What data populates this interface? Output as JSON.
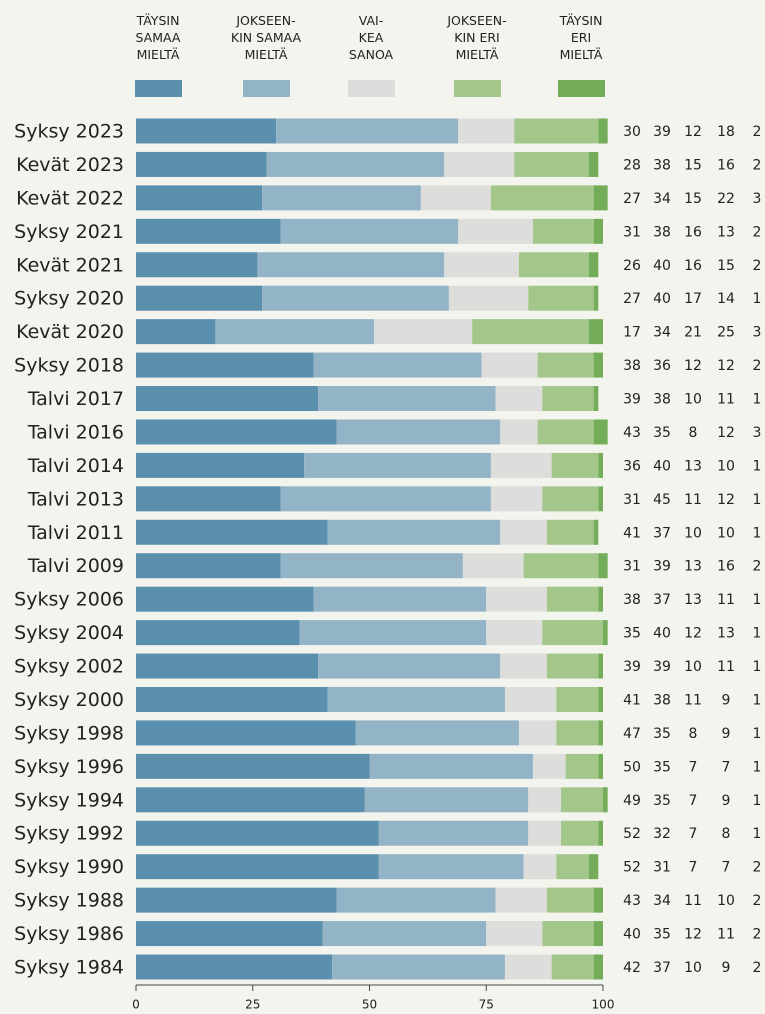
{
  "chart_data": {
    "type": "stacked-bar-horizontal",
    "categories": [
      "Syksy 2023",
      "Kevät 2023",
      "Kevät 2022",
      "Syksy 2021",
      "Kevät 2021",
      "Syksy 2020",
      "Kevät 2020",
      "Syksy 2018",
      "Talvi 2017",
      "Talvi 2016",
      "Talvi 2014",
      "Talvi 2013",
      "Talvi 2011",
      "Talvi 2009",
      "Syksy 2006",
      "Syksy 2004",
      "Syksy 2002",
      "Syksy 2000",
      "Syksy 1998",
      "Syksy 1996",
      "Syksy 1994",
      "Syksy 1992",
      "Syksy 1990",
      "Syksy 1988",
      "Syksy 1986",
      "Syksy 1984"
    ],
    "series": [
      {
        "name": "TÄYSIN\nSAMAA\nMIELTÄ",
        "color": "#5b8fae",
        "values": [
          30,
          28,
          27,
          31,
          26,
          27,
          17,
          38,
          39,
          43,
          36,
          31,
          41,
          31,
          38,
          35,
          39,
          41,
          47,
          50,
          49,
          52,
          52,
          43,
          40,
          42
        ]
      },
      {
        "name": "JOKSEEN-\nKIN SAMAA\nMIELTÄ",
        "color": "#93b3c6",
        "values": [
          39,
          38,
          34,
          38,
          40,
          40,
          34,
          36,
          38,
          35,
          40,
          45,
          37,
          39,
          37,
          40,
          39,
          38,
          35,
          35,
          35,
          32,
          31,
          34,
          35,
          37
        ]
      },
      {
        "name": "VAI-\nKEA\nSANOA",
        "color": "#dddddb",
        "values": [
          12,
          15,
          15,
          16,
          16,
          17,
          21,
          12,
          10,
          8,
          13,
          11,
          10,
          13,
          13,
          12,
          10,
          11,
          8,
          7,
          7,
          7,
          7,
          11,
          12,
          10
        ]
      },
      {
        "name": "JOKSEEN-\nKIN ERI\nMIELTÄ",
        "color": "#a3c68b",
        "values": [
          18,
          16,
          22,
          13,
          15,
          14,
          25,
          12,
          11,
          12,
          10,
          12,
          10,
          16,
          11,
          13,
          11,
          9,
          9,
          7,
          9,
          8,
          7,
          10,
          11,
          9
        ]
      },
      {
        "name": "TÄYSIN\nERI\nMIELTÄ",
        "color": "#74ad59",
        "values": [
          2,
          2,
          3,
          2,
          2,
          1,
          3,
          2,
          1,
          3,
          1,
          1,
          1,
          2,
          1,
          1,
          1,
          1,
          1,
          1,
          1,
          1,
          2,
          2,
          2,
          2
        ]
      }
    ],
    "xlim": [
      0,
      100
    ],
    "xticks": [
      0,
      25,
      50,
      75,
      100
    ]
  }
}
